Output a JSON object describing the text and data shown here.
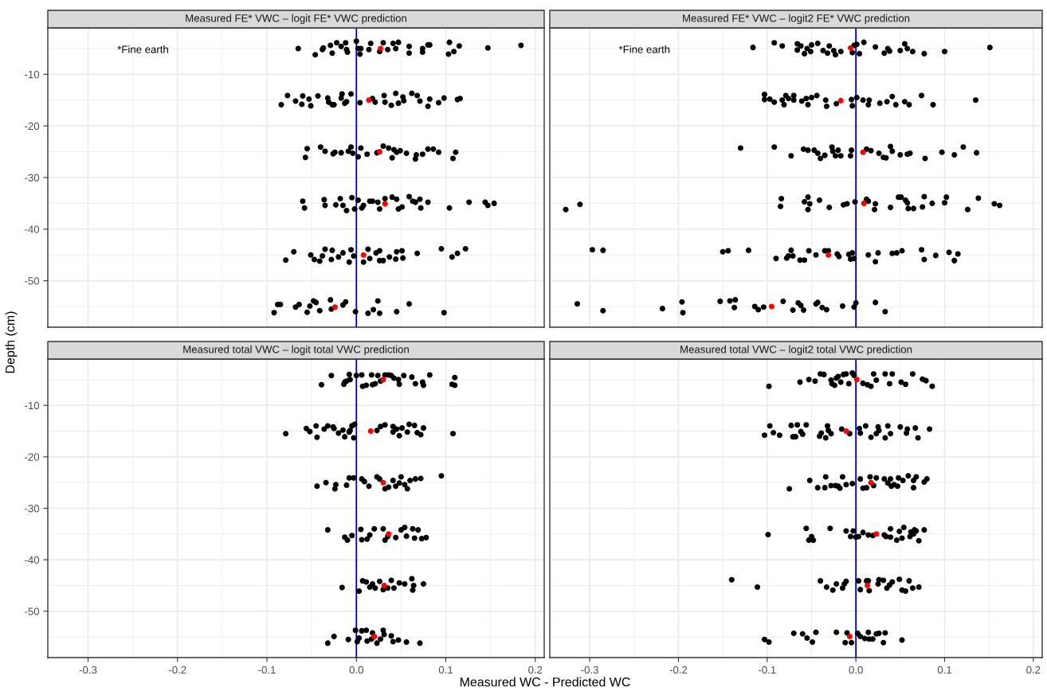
{
  "chart_data": [
    {
      "type": "scatter",
      "title": "Measured FE* VWC – logit FE* VWC prediction",
      "ylabel": "Depth (cm)",
      "annotations": [
        "*Fine earth"
      ],
      "xlim": [
        -0.345,
        0.21
      ],
      "ylim": [
        -59,
        -1
      ],
      "yticks": [
        -10,
        -20,
        -30,
        -40,
        -50
      ],
      "grid": true,
      "marker": "circle",
      "tick_labels": "y",
      "ref_lines": [
        {
          "axis": "x",
          "value": 0,
          "color": "#0000cd",
          "line_style": "solid"
        }
      ],
      "series": [
        {
          "color": "#000000",
          "x": [
            -0.065,
            -0.046,
            -0.038,
            -0.037,
            -0.029,
            -0.027,
            -0.022,
            -0.017,
            -0.012,
            -0.011,
            -0.01,
            0.0,
            0.002,
            0.004,
            0.005,
            0.014,
            0.016,
            0.026,
            0.03,
            0.035,
            0.041,
            0.044,
            0.047,
            0.059,
            0.059,
            0.074,
            0.074,
            0.08,
            0.082,
            0.104,
            0.103,
            0.109,
            0.115,
            0.147,
            0.184,
            -0.084,
            -0.077,
            -0.068,
            -0.061,
            -0.06,
            -0.053,
            -0.051,
            -0.043,
            -0.032,
            -0.031,
            -0.027,
            -0.025,
            -0.017,
            -0.016,
            -0.013,
            -0.011,
            -0.006,
            0.004,
            0.018,
            0.021,
            0.031,
            0.032,
            0.039,
            0.044,
            0.047,
            0.052,
            0.053,
            0.062,
            0.068,
            0.071,
            0.08,
            0.082,
            0.092,
            0.098,
            0.113,
            0.116,
            -0.057,
            -0.055,
            -0.04,
            -0.035,
            -0.026,
            -0.024,
            -0.017,
            -0.009,
            -0.006,
            -0.004,
            0.002,
            0.005,
            0.012,
            0.023,
            0.03,
            0.036,
            0.04,
            0.042,
            0.045,
            0.049,
            0.056,
            0.066,
            0.067,
            0.074,
            0.08,
            0.086,
            0.092,
            0.108,
            0.111,
            -0.06,
            -0.058,
            -0.036,
            -0.035,
            -0.023,
            -0.018,
            -0.015,
            -0.011,
            -0.005,
            -0.002,
            0.002,
            0.006,
            0.008,
            0.015,
            0.018,
            0.024,
            0.026,
            0.032,
            0.04,
            0.045,
            0.047,
            0.051,
            0.059,
            0.063,
            0.066,
            0.071,
            0.072,
            0.08,
            0.104,
            0.126,
            0.144,
            0.147,
            0.154,
            -0.079,
            -0.07,
            -0.051,
            -0.047,
            -0.041,
            -0.038,
            -0.035,
            -0.028,
            -0.027,
            -0.02,
            -0.015,
            -0.008,
            -0.006,
            -0.003,
            0.008,
            0.013,
            0.015,
            0.022,
            0.026,
            0.026,
            0.03,
            0.037,
            0.045,
            0.044,
            0.051,
            0.052,
            0.068,
            0.095,
            0.107,
            0.113,
            0.122,
            -0.092,
            -0.088,
            -0.085,
            -0.068,
            -0.064,
            -0.055,
            -0.052,
            -0.048,
            -0.045,
            -0.041,
            -0.029,
            -0.028,
            -0.015,
            -0.012,
            -0.001,
            0.013,
            0.019,
            0.024,
            0.026,
            0.045,
            0.059,
            0.098
          ],
          "values": [
            -5.0,
            -6.2,
            -5.2,
            -4.9,
            -4.4,
            -5.9,
            -3.9,
            -4.6,
            -3.9,
            -5.2,
            -5.7,
            -3.6,
            -5.0,
            -6.1,
            -5.0,
            -5.2,
            -4.0,
            -5.6,
            -3.9,
            -5.2,
            -4.0,
            -5.0,
            -3.8,
            -4.6,
            -5.9,
            -5.0,
            -5.7,
            -4.3,
            -4.3,
            -3.8,
            -6.1,
            -5.6,
            -4.5,
            -4.9,
            -4.4,
            -15.9,
            -14.1,
            -15.2,
            -15.8,
            -14.2,
            -14.8,
            -16.1,
            -14.2,
            -14.6,
            -15.4,
            -15.9,
            -15.9,
            -14.6,
            -13.8,
            -15.6,
            -15.3,
            -13.8,
            -15.5,
            -14.7,
            -15.4,
            -14.1,
            -15.4,
            -16.0,
            -13.7,
            -15.6,
            -14.4,
            -15.1,
            -13.7,
            -14.1,
            -15.2,
            -16.2,
            -14.8,
            -15.5,
            -14.6,
            -14.9,
            -14.7,
            -26.1,
            -24.4,
            -24.1,
            -24.9,
            -25.4,
            -25.1,
            -25.2,
            -24.9,
            -24.1,
            -25.3,
            -26.0,
            -24.3,
            -25.5,
            -25.2,
            -23.9,
            -24.3,
            -26.2,
            -24.6,
            -25.1,
            -24.8,
            -25.3,
            -26.4,
            -25.6,
            -25.5,
            -24.5,
            -24.5,
            -25.1,
            -26.3,
            -25.1,
            -34.6,
            -35.9,
            -34.3,
            -35.4,
            -35.3,
            -34.1,
            -35.4,
            -36.4,
            -33.9,
            -36.1,
            -34.4,
            -35.9,
            -35.4,
            -34.6,
            -34.6,
            -34.8,
            -36.1,
            -34.1,
            -33.8,
            -34.2,
            -36.1,
            -35.7,
            -33.7,
            -34.6,
            -34.8,
            -34.2,
            -35.9,
            -34.8,
            -35.9,
            -34.8,
            -34.8,
            -35.4,
            -35.0,
            -46.0,
            -44.4,
            -45.0,
            -45.9,
            -46.2,
            -45.2,
            -43.9,
            -45.9,
            -44.1,
            -45.4,
            -44.6,
            -46.4,
            -44.0,
            -45.2,
            -46.4,
            -43.9,
            -45.7,
            -44.6,
            -44.2,
            -46.1,
            -46.1,
            -45.4,
            -44.4,
            -45.8,
            -44.2,
            -45.6,
            -44.7,
            -43.8,
            -45.4,
            -44.7,
            -43.8,
            -56.2,
            -54.6,
            -54.6,
            -55.1,
            -54.6,
            -56.1,
            -54.9,
            -53.9,
            -54.2,
            -55.8,
            -53.7,
            -55.5,
            -54.7,
            -54.1,
            -56.0,
            -56.3,
            -55.6,
            -53.9,
            -56.3,
            -56.0,
            -54.5,
            -56.2
          ]
        },
        {
          "color": "#ff0000",
          "x": [
            0.027,
            0.014,
            0.026,
            0.032,
            0.008,
            -0.024
          ],
          "values": [
            -5.0,
            -15.0,
            -25.0,
            -35.1,
            -45.0,
            -55.1
          ]
        }
      ]
    },
    {
      "type": "scatter",
      "title": "Measured FE* VWC – logit2 FE* VWC prediction",
      "annotations": [
        "*Fine earth"
      ],
      "xlim": [
        -0.345,
        0.21
      ],
      "ylim": [
        -59,
        -1
      ],
      "grid": true,
      "marker": "circle",
      "tick_labels": false,
      "ref_lines": [
        {
          "axis": "x",
          "value": 0,
          "color": "#0000cd",
          "line_style": "solid"
        }
      ],
      "series": [
        {
          "color": "#000000",
          "x": [
            -0.116,
            -0.092,
            -0.083,
            -0.066,
            -0.066,
            -0.062,
            -0.058,
            -0.055,
            -0.051,
            -0.05,
            -0.043,
            -0.037,
            -0.032,
            -0.03,
            -0.025,
            -0.023,
            -0.017,
            -0.004,
            -0.002,
            0.001,
            0.004,
            0.009,
            0.022,
            0.032,
            0.036,
            0.038,
            0.05,
            0.055,
            0.058,
            0.064,
            0.077,
            0.1,
            0.151,
            -0.103,
            -0.103,
            -0.097,
            -0.092,
            -0.083,
            -0.081,
            -0.079,
            -0.076,
            -0.07,
            -0.07,
            -0.061,
            -0.056,
            -0.054,
            -0.05,
            -0.044,
            -0.034,
            -0.033,
            -0.022,
            -0.005,
            -0.004,
            0.001,
            0.008,
            0.015,
            0.014,
            0.027,
            0.035,
            0.041,
            0.045,
            0.055,
            0.06,
            0.074,
            0.087,
            0.135,
            -0.13,
            -0.092,
            -0.073,
            -0.059,
            -0.054,
            -0.047,
            -0.043,
            -0.04,
            -0.035,
            -0.027,
            -0.026,
            -0.023,
            -0.02,
            -0.017,
            -0.006,
            -0.005,
            0.012,
            0.017,
            0.026,
            0.031,
            0.034,
            0.039,
            0.041,
            0.05,
            0.058,
            0.061,
            0.078,
            0.097,
            0.111,
            0.121,
            0.136,
            -0.327,
            -0.311,
            -0.085,
            -0.084,
            -0.058,
            -0.054,
            -0.054,
            -0.052,
            -0.041,
            -0.03,
            -0.014,
            -0.01,
            -0.001,
            0.012,
            0.014,
            0.021,
            0.022,
            0.039,
            0.048,
            0.051,
            0.056,
            0.058,
            0.059,
            0.065,
            0.075,
            0.077,
            0.086,
            0.1,
            0.102,
            0.126,
            0.138,
            0.156,
            0.162,
            -0.297,
            -0.285,
            -0.15,
            -0.144,
            -0.121,
            -0.09,
            -0.078,
            -0.076,
            -0.073,
            -0.071,
            -0.063,
            -0.058,
            -0.053,
            -0.045,
            -0.035,
            -0.031,
            -0.021,
            -0.019,
            -0.008,
            -0.006,
            -0.004,
            -0.002,
            0.014,
            0.022,
            0.025,
            0.041,
            0.046,
            0.052,
            0.074,
            0.077,
            0.09,
            0.105,
            0.111,
            0.115,
            -0.314,
            -0.285,
            -0.218,
            -0.196,
            -0.195,
            -0.153,
            -0.142,
            -0.137,
            -0.136,
            -0.114,
            -0.11,
            -0.104,
            -0.082,
            -0.071,
            -0.065,
            -0.062,
            -0.059,
            -0.045,
            -0.043,
            -0.038,
            -0.033,
            -0.015,
            -0.002,
            0.0,
            0.022,
            0.033
          ],
          "values": [
            -4.8,
            -3.9,
            -4.5,
            -4.1,
            -5.3,
            -4.5,
            -6.0,
            -5.0,
            -5.6,
            -4.3,
            -4.0,
            -5.4,
            -5.9,
            -4.5,
            -5.4,
            -6.2,
            -5.6,
            -5.8,
            -4.4,
            -4.2,
            -6.0,
            -3.8,
            -4.7,
            -5.9,
            -5.0,
            -5.5,
            -5.4,
            -4.1,
            -5.0,
            -5.6,
            -6.0,
            -5.6,
            -4.8,
            -13.9,
            -14.9,
            -14.8,
            -15.4,
            -15.0,
            -15.9,
            -14.1,
            -14.7,
            -14.1,
            -15.0,
            -15.2,
            -14.7,
            -15.9,
            -14.5,
            -14.1,
            -15.0,
            -16.2,
            -15.7,
            -14.9,
            -16.1,
            -14.5,
            -15.0,
            -15.0,
            -15.9,
            -15.6,
            -15.3,
            -14.3,
            -15.9,
            -15.3,
            -15.9,
            -14.1,
            -15.9,
            -15.0,
            -24.3,
            -24.1,
            -25.8,
            -24.5,
            -24.7,
            -24.7,
            -25.3,
            -26.3,
            -25.7,
            -24.1,
            -24.9,
            -25.8,
            -24.7,
            -25.8,
            -25.8,
            -24.7,
            -24.5,
            -24.8,
            -25.3,
            -26.1,
            -26.2,
            -24.0,
            -24.9,
            -25.6,
            -25.5,
            -25.3,
            -26.3,
            -25.1,
            -25.6,
            -24.1,
            -25.2,
            -36.2,
            -35.2,
            -35.6,
            -34.1,
            -34.7,
            -36.2,
            -33.8,
            -35.1,
            -34.4,
            -35.8,
            -35.3,
            -35.1,
            -34.7,
            -34.2,
            -34.6,
            -36.2,
            -35.1,
            -35.8,
            -33.8,
            -33.8,
            -34.4,
            -34.9,
            -36.0,
            -36.0,
            -35.7,
            -33.7,
            -35.0,
            -34.9,
            -33.8,
            -36.2,
            -34.0,
            -35.1,
            -35.4,
            -44.0,
            -44.1,
            -44.4,
            -44.2,
            -44.1,
            -45.7,
            -45.6,
            -45.2,
            -44.1,
            -45.2,
            -46.0,
            -46.0,
            -44.2,
            -45.0,
            -44.2,
            -44.2,
            -44.8,
            -45.3,
            -44.9,
            -45.8,
            -44.6,
            -45.7,
            -45.0,
            -46.3,
            -44.6,
            -44.7,
            -44.6,
            -44.2,
            -44.0,
            -45.9,
            -45.1,
            -44.5,
            -46.1,
            -44.8,
            -54.5,
            -55.8,
            -55.4,
            -54.1,
            -56.2,
            -54.0,
            -53.9,
            -55.2,
            -53.7,
            -55.0,
            -55.6,
            -55.1,
            -54.0,
            -55.7,
            -54.3,
            -54.8,
            -55.7,
            -54.5,
            -54.2,
            -55.2,
            -55.6,
            -54.9,
            -55.1,
            -54.3,
            -54.2,
            -56.0
          ]
        },
        {
          "color": "#ff0000",
          "x": [
            -0.006,
            -0.017,
            0.008,
            0.009,
            -0.031,
            -0.095
          ],
          "values": [
            -4.9,
            -15.1,
            -25.1,
            -35.0,
            -45.0,
            -55.0
          ]
        }
      ]
    },
    {
      "type": "scatter",
      "title": "Measured total VWC – logit total VWC prediction",
      "xlabel": "Measured WC - Predicted WC",
      "xlim": [
        -0.345,
        0.21
      ],
      "xticks": [
        -0.3,
        -0.2,
        -0.1,
        {
          "value": 0,
          "label": "0.0"
        },
        0.1,
        0.2
      ],
      "ylim": [
        -59,
        -1
      ],
      "yticks": [
        -10,
        -20,
        -30,
        -40,
        -50
      ],
      "grid": true,
      "marker": "circle",
      "ref_lines": [
        {
          "axis": "x",
          "value": 0,
          "color": "#0000cd",
          "line_style": "solid"
        }
      ],
      "series": [
        {
          "color": "#000000",
          "x": [
            -0.039,
            -0.028,
            -0.014,
            -0.013,
            -0.011,
            -0.008,
            -0.007,
            0.0,
            0.006,
            0.007,
            0.011,
            0.017,
            0.018,
            0.021,
            0.024,
            0.027,
            0.032,
            0.036,
            0.039,
            0.042,
            0.047,
            0.048,
            0.053,
            0.062,
            0.066,
            0.074,
            0.075,
            0.082,
            0.107,
            0.11,
            0.11,
            -0.079,
            -0.056,
            -0.052,
            -0.045,
            -0.044,
            -0.036,
            -0.032,
            -0.026,
            -0.025,
            -0.02,
            -0.015,
            -0.013,
            -0.008,
            -0.007,
            -0.005,
            -0.003,
            -0.002,
            0.023,
            0.027,
            0.032,
            0.041,
            0.041,
            0.045,
            0.048,
            0.051,
            0.057,
            0.059,
            0.065,
            0.068,
            0.072,
            0.075,
            0.108,
            -0.044,
            -0.034,
            -0.024,
            -0.023,
            -0.011,
            -0.008,
            -0.003,
            0.006,
            0.009,
            0.014,
            0.023,
            0.026,
            0.032,
            0.036,
            0.041,
            0.044,
            0.048,
            0.05,
            0.054,
            0.057,
            0.06,
            0.066,
            0.072,
            0.095,
            -0.032,
            -0.013,
            -0.01,
            -0.005,
            0.005,
            0.006,
            0.012,
            0.015,
            0.02,
            0.03,
            0.032,
            0.035,
            0.044,
            0.05,
            0.054,
            0.056,
            0.063,
            0.065,
            0.069,
            0.073,
            0.078,
            -0.016,
            0.003,
            0.007,
            0.011,
            0.015,
            0.018,
            0.021,
            0.026,
            0.03,
            0.035,
            0.039,
            0.042,
            0.048,
            0.054,
            0.062,
            0.063,
            0.064,
            0.075,
            -0.032,
            -0.025,
            -0.009,
            -0.001,
            0.001,
            0.003,
            0.006,
            0.011,
            0.012,
            0.017,
            0.018,
            0.023,
            0.027,
            0.03,
            0.031,
            0.039,
            0.041,
            0.047,
            0.056,
            0.071
          ],
          "values": [
            -6.0,
            -4.2,
            -5.9,
            -5.5,
            -5.3,
            -4.0,
            -5.0,
            -4.2,
            -4.1,
            -6.3,
            -6.1,
            -4.1,
            -6.0,
            -5.8,
            -4.2,
            -5.3,
            -4.1,
            -4.1,
            -4.2,
            -4.7,
            -5.0,
            -5.9,
            -4.2,
            -4.5,
            -5.8,
            -5.5,
            -6.1,
            -4.1,
            -5.9,
            -4.6,
            -6.1,
            -15.5,
            -14.5,
            -15.1,
            -14.0,
            -16.2,
            -14.6,
            -14.0,
            -14.2,
            -14.5,
            -15.4,
            -14.8,
            -16.1,
            -15.2,
            -14.9,
            -14.0,
            -16.3,
            -13.7,
            -14.9,
            -14.1,
            -13.8,
            -14.1,
            -15.2,
            -14.6,
            -15.9,
            -14.4,
            -15.2,
            -13.7,
            -13.9,
            -15.3,
            -15.7,
            -14.4,
            -15.5,
            -25.7,
            -25.0,
            -26.2,
            -25.4,
            -25.5,
            -24.1,
            -24.1,
            -24.3,
            -24.8,
            -25.7,
            -23.9,
            -24.3,
            -26.2,
            -25.9,
            -24.6,
            -25.7,
            -25.1,
            -23.9,
            -25.4,
            -26.2,
            -24.6,
            -24.3,
            -24.2,
            -23.7,
            -34.2,
            -35.6,
            -36.2,
            -35.3,
            -34.1,
            -36.1,
            -36.0,
            -35.2,
            -34.0,
            -34.0,
            -36.2,
            -35.5,
            -35.7,
            -34.2,
            -33.7,
            -35.4,
            -34.0,
            -35.8,
            -34.2,
            -35.9,
            -35.7,
            -45.4,
            -46.1,
            -44.1,
            -44.3,
            -45.3,
            -44.7,
            -45.5,
            -44.2,
            -45.8,
            -45.5,
            -44.0,
            -45.5,
            -44.5,
            -44.7,
            -43.7,
            -45.9,
            -45.0,
            -44.7,
            -56.2,
            -54.9,
            -55.5,
            -53.7,
            -55.9,
            -55.2,
            -53.8,
            -53.7,
            -55.8,
            -55.4,
            -54.2,
            -56.2,
            -55.4,
            -53.7,
            -54.5,
            -54.8,
            -55.9,
            -55.6,
            -56.0,
            -56.2
          ]
        },
        {
          "color": "#ff0000",
          "x": [
            0.03,
            0.016,
            0.03,
            0.036,
            0.031,
            0.02
          ],
          "values": [
            -5.0,
            -15.0,
            -25.0,
            -35.0,
            -45.0,
            -54.9
          ]
        }
      ]
    },
    {
      "type": "scatter",
      "title": "Measured total VWC – logit2 total VWC prediction",
      "xlim": [
        -0.345,
        0.21
      ],
      "xticks": [
        -0.3,
        -0.2,
        -0.1,
        {
          "value": 0,
          "label": "0.0"
        },
        0.1,
        0.2
      ],
      "ylim": [
        -59,
        -1
      ],
      "grid": true,
      "marker": "circle",
      "tick_labels": "x",
      "ref_lines": [
        {
          "axis": "x",
          "value": 0,
          "color": "#0000cd",
          "line_style": "solid"
        }
      ],
      "series": [
        {
          "color": "#000000",
          "x": [
            -0.098,
            -0.063,
            -0.053,
            -0.046,
            -0.04,
            -0.036,
            -0.028,
            -0.027,
            -0.024,
            -0.022,
            -0.02,
            -0.017,
            -0.014,
            -0.011,
            -0.008,
            -0.004,
            -0.002,
            0.008,
            0.013,
            0.017,
            0.02,
            0.023,
            0.033,
            0.038,
            0.041,
            0.051,
            0.056,
            0.064,
            0.075,
            0.079,
            0.086,
            -0.103,
            -0.097,
            -0.093,
            -0.086,
            -0.073,
            -0.071,
            -0.068,
            -0.066,
            -0.062,
            -0.06,
            -0.056,
            -0.041,
            -0.039,
            -0.034,
            -0.032,
            -0.031,
            -0.028,
            -0.016,
            -0.007,
            0.004,
            0.005,
            0.011,
            0.017,
            0.023,
            0.025,
            0.026,
            0.033,
            0.036,
            0.039,
            0.05,
            0.057,
            0.058,
            0.067,
            0.07,
            0.083,
            -0.075,
            -0.052,
            -0.043,
            -0.035,
            -0.034,
            -0.028,
            -0.023,
            -0.02,
            -0.018,
            -0.015,
            -0.011,
            -0.004,
            0.005,
            0.008,
            0.012,
            0.016,
            0.02,
            0.023,
            0.032,
            0.036,
            0.039,
            0.04,
            0.043,
            0.047,
            0.048,
            0.053,
            0.059,
            0.065,
            0.065,
            0.068,
            0.077,
            0.08,
            -0.099,
            -0.056,
            -0.053,
            -0.05,
            -0.048,
            -0.029,
            -0.011,
            -0.006,
            -0.003,
            0.0,
            0.003,
            0.008,
            0.014,
            0.019,
            0.032,
            0.034,
            0.039,
            0.039,
            0.046,
            0.049,
            0.052,
            0.054,
            0.061,
            0.062,
            0.065,
            0.066,
            0.068,
            0.071,
            0.077,
            -0.14,
            -0.111,
            -0.04,
            -0.033,
            -0.026,
            -0.022,
            -0.015,
            -0.013,
            -0.011,
            0.003,
            0.005,
            0.012,
            0.014,
            0.015,
            0.025,
            0.026,
            0.031,
            0.035,
            0.038,
            0.041,
            0.049,
            0.052,
            0.056,
            0.06,
            0.064,
            0.071,
            -0.103,
            -0.098,
            -0.07,
            -0.06,
            -0.055,
            -0.049,
            -0.045,
            -0.022,
            -0.012,
            -0.01,
            -0.005,
            0.002,
            0.005,
            0.01,
            0.014,
            0.015,
            0.019,
            0.023,
            0.026,
            0.031,
            0.033,
            0.052
          ],
          "values": [
            -6.3,
            -5.5,
            -5.0,
            -5.3,
            -3.9,
            -4.0,
            -5.1,
            -5.8,
            -6.1,
            -4.7,
            -4.4,
            -5.5,
            -4.0,
            -3.9,
            -5.8,
            -3.7,
            -4.2,
            -5.7,
            -6.0,
            -6.3,
            -3.9,
            -5.1,
            -3.9,
            -5.8,
            -3.9,
            -5.5,
            -5.9,
            -3.9,
            -4.9,
            -5.2,
            -6.3,
            -15.8,
            -14.0,
            -15.3,
            -15.8,
            -13.9,
            -16.1,
            -16.1,
            -13.8,
            -15.1,
            -15.6,
            -13.8,
            -16.0,
            -15.4,
            -16.3,
            -14.0,
            -14.9,
            -15.5,
            -14.6,
            -15.5,
            -14.5,
            -15.4,
            -14.0,
            -16.2,
            -15.5,
            -14.2,
            -14.9,
            -16.3,
            -14.0,
            -15.5,
            -14.2,
            -15.4,
            -14.6,
            -14.4,
            -16.3,
            -14.6,
            -26.2,
            -24.6,
            -26.0,
            -26.0,
            -23.9,
            -25.6,
            -25.6,
            -25.7,
            -26.1,
            -23.9,
            -25.4,
            -25.2,
            -24.3,
            -26.1,
            -26.0,
            -23.9,
            -25.6,
            -24.1,
            -24.3,
            -25.1,
            -24.3,
            -25.7,
            -25.4,
            -25.7,
            -24.1,
            -24.6,
            -23.7,
            -26.0,
            -24.6,
            -23.9,
            -24.9,
            -24.3,
            -35.1,
            -33.9,
            -36.2,
            -35.5,
            -36.2,
            -33.9,
            -34.4,
            -35.5,
            -34.4,
            -35.6,
            -35.5,
            -34.7,
            -35.2,
            -35.3,
            -35.2,
            -35.5,
            -34.0,
            -35.6,
            -36.2,
            -34.5,
            -35.8,
            -33.7,
            -35.5,
            -34.6,
            -35.0,
            -34.2,
            -34.4,
            -36.3,
            -34.2,
            -43.9,
            -45.3,
            -44.1,
            -45.3,
            -45.9,
            -44.7,
            -45.5,
            -44.7,
            -44.2,
            -44.1,
            -45.8,
            -44.1,
            -44.1,
            -46.0,
            -44.7,
            -43.9,
            -44.0,
            -45.5,
            -44.9,
            -44.3,
            -43.8,
            -45.9,
            -46.1,
            -44.1,
            -45.5,
            -45.3,
            -55.5,
            -56.0,
            -54.3,
            -54.4,
            -55.2,
            -56.0,
            -54.1,
            -54.1,
            -56.1,
            -54.2,
            -56.1,
            -54.3,
            -54.9,
            -55.3,
            -54.1,
            -55.4,
            -55.4,
            -54.4,
            -54.3,
            -56.1,
            -54.2,
            -55.6
          ]
        },
        {
          "color": "#ff0000",
          "x": [
            0.001,
            -0.011,
            0.017,
            0.023,
            0.013,
            -0.007
          ],
          "values": [
            -5.0,
            -15.0,
            -25.0,
            -35.0,
            -45.0,
            -54.9
          ]
        }
      ]
    }
  ]
}
